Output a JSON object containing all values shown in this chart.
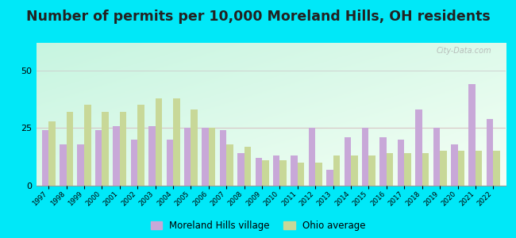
{
  "years": [
    1997,
    1998,
    1999,
    2000,
    2001,
    2002,
    2003,
    2004,
    2005,
    2006,
    2007,
    2008,
    2009,
    2010,
    2011,
    2012,
    2013,
    2014,
    2015,
    2016,
    2017,
    2018,
    2019,
    2020,
    2021,
    2022
  ],
  "moreland_hills": [
    24,
    18,
    18,
    24,
    26,
    20,
    26,
    20,
    25,
    25,
    24,
    14,
    12,
    13,
    13,
    25,
    7,
    21,
    25,
    21,
    20,
    33,
    25,
    18,
    44,
    29
  ],
  "ohio_avg": [
    28,
    32,
    35,
    32,
    32,
    35,
    38,
    38,
    33,
    25,
    18,
    17,
    11,
    11,
    10,
    10,
    13,
    13,
    13,
    14,
    14,
    14,
    15,
    15,
    15,
    15
  ],
  "moreland_color": "#c8a8d8",
  "ohio_color": "#c8d898",
  "background_outer": "#00e8f8",
  "title": "Number of permits per 10,000 Moreland Hills, OH residents",
  "title_fontsize": 12.5,
  "ylabel_ticks": [
    0,
    25,
    50
  ],
  "ylim": [
    0,
    62
  ],
  "legend_label1": "Moreland Hills village",
  "legend_label2": "Ohio average"
}
